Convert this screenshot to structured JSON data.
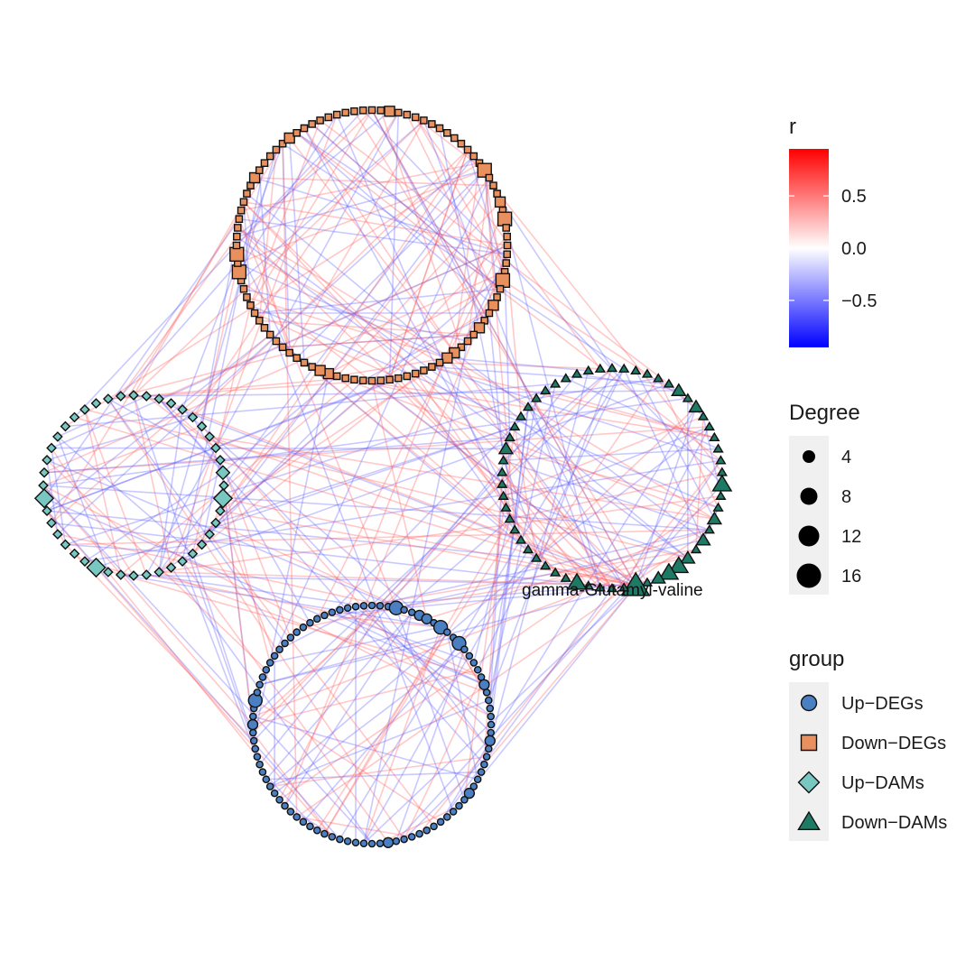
{
  "chart_data": {
    "type": "network",
    "layout": "circular-clusters",
    "edge_color_variable": "r",
    "node_size_variable": "Degree",
    "node_shape_fill_variable": "group",
    "groups": [
      {
        "name": "Up-DEGs",
        "shape": "circle",
        "fill": "#4A7FC1",
        "n_nodes": 92
      },
      {
        "name": "Down-DEGs",
        "shape": "square",
        "fill": "#E8915F",
        "n_nodes": 96
      },
      {
        "name": "Up-DAMs",
        "shape": "diamond",
        "fill": "#79C7C1",
        "n_nodes": 44
      },
      {
        "name": "Down-DAMs",
        "shape": "triangle",
        "fill": "#1E7A64",
        "n_nodes": 58
      }
    ],
    "highlighted_node": "gamma-Glutamyl-valine",
    "r_scale": {
      "title": "r",
      "ticks": [
        "0.5",
        "0.0",
        "−0.5"
      ],
      "tick_values": [
        0.5,
        0.0,
        -0.5
      ],
      "min": -0.95,
      "max": 0.95,
      "low_color": "#0000FF",
      "mid_color": "#FFFFFF",
      "high_color": "#FF0000"
    },
    "degree_legend": {
      "title": "Degree",
      "values": [
        4,
        8,
        12,
        16
      ],
      "labels": [
        "4",
        "8",
        "12",
        "16"
      ]
    },
    "group_legend": {
      "title": "group",
      "labels": [
        "Up−DEGs",
        "Down−DEGs",
        "Up−DAMs",
        "Down−DAMs"
      ]
    },
    "edge_color_positive": "#FF5A5A",
    "edge_color_negative": "#5A5AFF"
  }
}
